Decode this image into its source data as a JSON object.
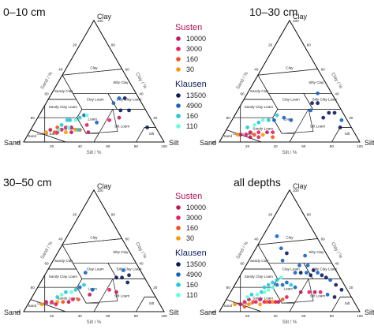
{
  "figure": {
    "vertex_labels": {
      "top": "Clay",
      "left": "Sand",
      "right": "Silt"
    },
    "axis_labels": {
      "sand": "Sand / %",
      "silt": "Silt / %",
      "clay": "Clay / %"
    },
    "ticks": [
      "20",
      "40",
      "60",
      "80",
      "100"
    ],
    "classes": [
      "Clay",
      "Silty Clay",
      "Sandy Clay",
      "Clay Loam",
      "Silty Clay Loam",
      "Sandy Clay Loam",
      "Loam",
      "Silt Loam",
      "Silt",
      "Sandy Loam",
      "Loamy Sand",
      "Sand"
    ]
  },
  "legend": {
    "susten_title": "Susten",
    "susten": [
      {
        "label": "10000",
        "color": "#c2185b"
      },
      {
        "label": "3000",
        "color": "#e91e63"
      },
      {
        "label": "160",
        "color": "#f4511e"
      },
      {
        "label": "30",
        "color": "#ff9800"
      }
    ],
    "klausen_title": "Klausen",
    "klausen": [
      {
        "label": "13500",
        "color": "#0d1b5e"
      },
      {
        "label": "4900",
        "color": "#1565c0"
      },
      {
        "label": "160",
        "color": "#26c6da"
      },
      {
        "label": "110",
        "color": "#64ffda"
      }
    ]
  },
  "chart_data": [
    {
      "type": "scatter",
      "title": "0–10 cm",
      "axes": [
        "sand",
        "silt",
        "clay"
      ],
      "points": [
        {
          "sand": 76,
          "silt": 14,
          "clay": 10,
          "color": "#c2185b"
        },
        {
          "sand": 72,
          "silt": 20,
          "clay": 8,
          "color": "#e91e63"
        },
        {
          "sand": 68,
          "silt": 22,
          "clay": 10,
          "color": "#e91e63"
        },
        {
          "sand": 70,
          "silt": 18,
          "clay": 12,
          "color": "#f4511e"
        },
        {
          "sand": 64,
          "silt": 24,
          "clay": 12,
          "color": "#e91e63"
        },
        {
          "sand": 62,
          "silt": 30,
          "clay": 8,
          "color": "#c2185b"
        },
        {
          "sand": 58,
          "silt": 32,
          "clay": 10,
          "color": "#ff9800"
        },
        {
          "sand": 55,
          "silt": 35,
          "clay": 10,
          "color": "#f4511e"
        },
        {
          "sand": 50,
          "silt": 42,
          "clay": 8,
          "color": "#c2185b"
        },
        {
          "sand": 48,
          "silt": 38,
          "clay": 14,
          "color": "#e91e63"
        },
        {
          "sand": 80,
          "silt": 12,
          "clay": 8,
          "color": "#ff9800"
        },
        {
          "sand": 74,
          "silt": 18,
          "clay": 8,
          "color": "#f4511e"
        },
        {
          "sand": 66,
          "silt": 26,
          "clay": 8,
          "color": "#ff9800"
        },
        {
          "sand": 60,
          "silt": 28,
          "clay": 12,
          "color": "#c2185b"
        },
        {
          "sand": 30,
          "silt": 52,
          "clay": 18,
          "color": "#e91e63"
        },
        {
          "sand": 22,
          "silt": 58,
          "clay": 20,
          "color": "#c2185b"
        },
        {
          "sand": 70,
          "silt": 20,
          "clay": 10,
          "color": "#64ffda"
        },
        {
          "sand": 66,
          "silt": 20,
          "clay": 14,
          "color": "#26c6da"
        },
        {
          "sand": 60,
          "silt": 22,
          "clay": 18,
          "color": "#26c6da"
        },
        {
          "sand": 62,
          "silt": 26,
          "clay": 12,
          "color": "#64ffda"
        },
        {
          "sand": 58,
          "silt": 24,
          "clay": 18,
          "color": "#26c6da"
        },
        {
          "sand": 54,
          "silt": 28,
          "clay": 18,
          "color": "#64ffda"
        },
        {
          "sand": 50,
          "silt": 30,
          "clay": 20,
          "color": "#26c6da"
        },
        {
          "sand": 46,
          "silt": 32,
          "clay": 22,
          "color": "#1565c0"
        },
        {
          "sand": 44,
          "silt": 34,
          "clay": 22,
          "color": "#64ffda"
        },
        {
          "sand": 56,
          "silt": 34,
          "clay": 10,
          "color": "#26c6da"
        },
        {
          "sand": 40,
          "silt": 44,
          "clay": 16,
          "color": "#1565c0"
        },
        {
          "sand": 20,
          "silt": 48,
          "clay": 32,
          "color": "#1565c0"
        },
        {
          "sand": 18,
          "silt": 56,
          "clay": 26,
          "color": "#0d1b5e"
        },
        {
          "sand": 14,
          "silt": 50,
          "clay": 36,
          "color": "#1565c0"
        },
        {
          "sand": 10,
          "silt": 54,
          "clay": 36,
          "color": "#0d1b5e"
        },
        {
          "sand": 12,
          "silt": 62,
          "clay": 26,
          "color": "#0d1b5e"
        },
        {
          "sand": 6,
          "silt": 82,
          "clay": 12,
          "color": "#0d1b5e"
        }
      ]
    },
    {
      "type": "scatter",
      "title": "10–30 cm",
      "axes": [
        "sand",
        "silt",
        "clay"
      ],
      "points": [
        {
          "sand": 82,
          "silt": 12,
          "clay": 6,
          "color": "#c2185b"
        },
        {
          "sand": 78,
          "silt": 16,
          "clay": 6,
          "color": "#e91e63"
        },
        {
          "sand": 74,
          "silt": 18,
          "clay": 8,
          "color": "#c2185b"
        },
        {
          "sand": 72,
          "silt": 22,
          "clay": 6,
          "color": "#f4511e"
        },
        {
          "sand": 68,
          "silt": 24,
          "clay": 8,
          "color": "#e91e63"
        },
        {
          "sand": 66,
          "silt": 28,
          "clay": 6,
          "color": "#ff9800"
        },
        {
          "sand": 62,
          "silt": 30,
          "clay": 8,
          "color": "#c2185b"
        },
        {
          "sand": 58,
          "silt": 34,
          "clay": 8,
          "color": "#e91e63"
        },
        {
          "sand": 60,
          "silt": 36,
          "clay": 4,
          "color": "#f4511e"
        },
        {
          "sand": 84,
          "silt": 10,
          "clay": 6,
          "color": "#ff9800"
        },
        {
          "sand": 76,
          "silt": 20,
          "clay": 4,
          "color": "#c2185b"
        },
        {
          "sand": 70,
          "silt": 26,
          "clay": 4,
          "color": "#e91e63"
        },
        {
          "sand": 74,
          "silt": 14,
          "clay": 12,
          "color": "#26c6da"
        },
        {
          "sand": 68,
          "silt": 18,
          "clay": 14,
          "color": "#64ffda"
        },
        {
          "sand": 64,
          "silt": 20,
          "clay": 16,
          "color": "#26c6da"
        },
        {
          "sand": 60,
          "silt": 22,
          "clay": 18,
          "color": "#64ffda"
        },
        {
          "sand": 56,
          "silt": 26,
          "clay": 18,
          "color": "#26c6da"
        },
        {
          "sand": 52,
          "silt": 30,
          "clay": 18,
          "color": "#1565c0"
        },
        {
          "sand": 48,
          "silt": 30,
          "clay": 22,
          "color": "#26c6da"
        },
        {
          "sand": 44,
          "silt": 36,
          "clay": 20,
          "color": "#1565c0"
        },
        {
          "sand": 40,
          "silt": 42,
          "clay": 18,
          "color": "#1565c0"
        },
        {
          "sand": 22,
          "silt": 52,
          "clay": 26,
          "color": "#1565c0"
        },
        {
          "sand": 18,
          "silt": 50,
          "clay": 32,
          "color": "#0d1b5e"
        },
        {
          "sand": 14,
          "silt": 54,
          "clay": 32,
          "color": "#0d1b5e"
        },
        {
          "sand": 10,
          "silt": 50,
          "clay": 40,
          "color": "#1565c0"
        },
        {
          "sand": 16,
          "silt": 64,
          "clay": 20,
          "color": "#0d1b5e"
        },
        {
          "sand": 10,
          "silt": 66,
          "clay": 24,
          "color": "#0d1b5e"
        },
        {
          "sand": 6,
          "silt": 70,
          "clay": 24,
          "color": "#0d1b5e"
        },
        {
          "sand": 4,
          "silt": 78,
          "clay": 18,
          "color": "#1565c0"
        },
        {
          "sand": 8,
          "silt": 80,
          "clay": 12,
          "color": "#0d1b5e"
        }
      ]
    },
    {
      "type": "scatter",
      "title": "30–50 cm",
      "axes": [
        "sand",
        "silt",
        "clay"
      ],
      "points": [
        {
          "sand": 80,
          "silt": 12,
          "clay": 8,
          "color": "#c2185b"
        },
        {
          "sand": 76,
          "silt": 16,
          "clay": 8,
          "color": "#e91e63"
        },
        {
          "sand": 72,
          "silt": 20,
          "clay": 8,
          "color": "#ff9800"
        },
        {
          "sand": 68,
          "silt": 24,
          "clay": 8,
          "color": "#f4511e"
        },
        {
          "sand": 64,
          "silt": 28,
          "clay": 8,
          "color": "#c2185b"
        },
        {
          "sand": 60,
          "silt": 30,
          "clay": 10,
          "color": "#e91e63"
        },
        {
          "sand": 56,
          "silt": 34,
          "clay": 10,
          "color": "#f4511e"
        },
        {
          "sand": 84,
          "silt": 10,
          "clay": 6,
          "color": "#ff9800"
        },
        {
          "sand": 74,
          "silt": 20,
          "clay": 6,
          "color": "#e91e63"
        },
        {
          "sand": 46,
          "silt": 40,
          "clay": 14,
          "color": "#c2185b"
        },
        {
          "sand": 30,
          "silt": 52,
          "clay": 18,
          "color": "#e91e63"
        },
        {
          "sand": 26,
          "silt": 58,
          "clay": 16,
          "color": "#c2185b"
        },
        {
          "sand": 70,
          "silt": 18,
          "clay": 12,
          "color": "#26c6da"
        },
        {
          "sand": 66,
          "silt": 20,
          "clay": 14,
          "color": "#64ffda"
        },
        {
          "sand": 62,
          "silt": 22,
          "clay": 16,
          "color": "#26c6da"
        },
        {
          "sand": 58,
          "silt": 26,
          "clay": 16,
          "color": "#64ffda"
        },
        {
          "sand": 54,
          "silt": 28,
          "clay": 18,
          "color": "#26c6da"
        },
        {
          "sand": 50,
          "silt": 30,
          "clay": 20,
          "color": "#1565c0"
        },
        {
          "sand": 46,
          "silt": 32,
          "clay": 22,
          "color": "#26c6da"
        },
        {
          "sand": 42,
          "silt": 40,
          "clay": 18,
          "color": "#1565c0"
        },
        {
          "sand": 40,
          "silt": 28,
          "clay": 32,
          "color": "#1565c0"
        },
        {
          "sand": 20,
          "silt": 52,
          "clay": 28,
          "color": "#0d1b5e"
        },
        {
          "sand": 16,
          "silt": 56,
          "clay": 28,
          "color": "#0d1b5e"
        },
        {
          "sand": 12,
          "silt": 54,
          "clay": 34,
          "color": "#1565c0"
        },
        {
          "sand": 10,
          "silt": 60,
          "clay": 30,
          "color": "#0d1b5e"
        },
        {
          "sand": 14,
          "silt": 62,
          "clay": 24,
          "color": "#0d1b5e"
        }
      ]
    },
    {
      "type": "scatter",
      "title": "all depths",
      "axes": [
        "sand",
        "silt",
        "clay"
      ],
      "points": [
        {
          "sand": 82,
          "silt": 12,
          "clay": 6,
          "color": "#c2185b"
        },
        {
          "sand": 78,
          "silt": 14,
          "clay": 8,
          "color": "#e91e63"
        },
        {
          "sand": 76,
          "silt": 18,
          "clay": 6,
          "color": "#ff9800"
        },
        {
          "sand": 74,
          "silt": 16,
          "clay": 10,
          "color": "#c2185b"
        },
        {
          "sand": 72,
          "silt": 20,
          "clay": 8,
          "color": "#f4511e"
        },
        {
          "sand": 70,
          "silt": 22,
          "clay": 8,
          "color": "#e91e63"
        },
        {
          "sand": 68,
          "silt": 26,
          "clay": 6,
          "color": "#ff9800"
        },
        {
          "sand": 66,
          "silt": 24,
          "clay": 10,
          "color": "#c2185b"
        },
        {
          "sand": 64,
          "silt": 28,
          "clay": 8,
          "color": "#e91e63"
        },
        {
          "sand": 62,
          "silt": 30,
          "clay": 8,
          "color": "#f4511e"
        },
        {
          "sand": 60,
          "silt": 32,
          "clay": 8,
          "color": "#c2185b"
        },
        {
          "sand": 58,
          "silt": 34,
          "clay": 8,
          "color": "#ff9800"
        },
        {
          "sand": 56,
          "silt": 36,
          "clay": 8,
          "color": "#e91e63"
        },
        {
          "sand": 54,
          "silt": 38,
          "clay": 8,
          "color": "#c2185b"
        },
        {
          "sand": 50,
          "silt": 40,
          "clay": 10,
          "color": "#f4511e"
        },
        {
          "sand": 46,
          "silt": 42,
          "clay": 12,
          "color": "#e91e63"
        },
        {
          "sand": 86,
          "silt": 8,
          "clay": 6,
          "color": "#ff9800"
        },
        {
          "sand": 80,
          "silt": 16,
          "clay": 4,
          "color": "#f4511e"
        },
        {
          "sand": 34,
          "silt": 50,
          "clay": 16,
          "color": "#c2185b"
        },
        {
          "sand": 28,
          "silt": 56,
          "clay": 16,
          "color": "#e91e63"
        },
        {
          "sand": 24,
          "silt": 60,
          "clay": 16,
          "color": "#c2185b"
        },
        {
          "sand": 20,
          "silt": 64,
          "clay": 16,
          "color": "#e91e63"
        },
        {
          "sand": 74,
          "silt": 14,
          "clay": 12,
          "color": "#64ffda"
        },
        {
          "sand": 70,
          "silt": 16,
          "clay": 14,
          "color": "#26c6da"
        },
        {
          "sand": 66,
          "silt": 20,
          "clay": 14,
          "color": "#64ffda"
        },
        {
          "sand": 62,
          "silt": 22,
          "clay": 16,
          "color": "#26c6da"
        },
        {
          "sand": 60,
          "silt": 24,
          "clay": 16,
          "color": "#64ffda"
        },
        {
          "sand": 58,
          "silt": 22,
          "clay": 20,
          "color": "#26c6da"
        },
        {
          "sand": 56,
          "silt": 26,
          "clay": 18,
          "color": "#64ffda"
        },
        {
          "sand": 54,
          "silt": 24,
          "clay": 22,
          "color": "#26c6da"
        },
        {
          "sand": 52,
          "silt": 28,
          "clay": 20,
          "color": "#64ffda"
        },
        {
          "sand": 50,
          "silt": 26,
          "clay": 24,
          "color": "#26c6da"
        },
        {
          "sand": 48,
          "silt": 30,
          "clay": 22,
          "color": "#1565c0"
        },
        {
          "sand": 46,
          "silt": 28,
          "clay": 26,
          "color": "#26c6da"
        },
        {
          "sand": 44,
          "silt": 34,
          "clay": 22,
          "color": "#1565c0"
        },
        {
          "sand": 42,
          "silt": 30,
          "clay": 28,
          "color": "#64ffda"
        },
        {
          "sand": 40,
          "silt": 36,
          "clay": 24,
          "color": "#1565c0"
        },
        {
          "sand": 38,
          "silt": 40,
          "clay": 22,
          "color": "#26c6da"
        },
        {
          "sand": 36,
          "silt": 44,
          "clay": 20,
          "color": "#1565c0"
        },
        {
          "sand": 30,
          "silt": 38,
          "clay": 32,
          "color": "#1565c0"
        },
        {
          "sand": 26,
          "silt": 42,
          "clay": 32,
          "color": "#0d1b5e"
        },
        {
          "sand": 22,
          "silt": 46,
          "clay": 32,
          "color": "#1565c0"
        },
        {
          "sand": 20,
          "silt": 50,
          "clay": 30,
          "color": "#0d1b5e"
        },
        {
          "sand": 18,
          "silt": 44,
          "clay": 38,
          "color": "#1565c0"
        },
        {
          "sand": 16,
          "silt": 50,
          "clay": 34,
          "color": "#0d1b5e"
        },
        {
          "sand": 14,
          "silt": 54,
          "clay": 32,
          "color": "#1565c0"
        },
        {
          "sand": 12,
          "silt": 58,
          "clay": 30,
          "color": "#0d1b5e"
        },
        {
          "sand": 10,
          "silt": 62,
          "clay": 28,
          "color": "#0d1b5e"
        },
        {
          "sand": 8,
          "silt": 66,
          "clay": 26,
          "color": "#1565c0"
        },
        {
          "sand": 6,
          "silt": 72,
          "clay": 22,
          "color": "#0d1b5e"
        },
        {
          "sand": 4,
          "silt": 78,
          "clay": 18,
          "color": "#0d1b5e"
        },
        {
          "sand": 16,
          "silt": 70,
          "clay": 14,
          "color": "#1565c0"
        },
        {
          "sand": 12,
          "silt": 76,
          "clay": 12,
          "color": "#0d1b5e"
        },
        {
          "sand": 24,
          "silt": 38,
          "clay": 38,
          "color": "#1565c0"
        },
        {
          "sand": 34,
          "silt": 24,
          "clay": 42,
          "color": "#1565c0"
        },
        {
          "sand": 16,
          "silt": 38,
          "clay": 46,
          "color": "#1565c0"
        },
        {
          "sand": 28,
          "silt": 24,
          "clay": 48,
          "color": "#0d1b5e"
        },
        {
          "sand": 30,
          "silt": 18,
          "clay": 52,
          "color": "#1565c0"
        },
        {
          "sand": 28,
          "silt": 10,
          "clay": 62,
          "color": "#1565c0"
        }
      ]
    }
  ]
}
